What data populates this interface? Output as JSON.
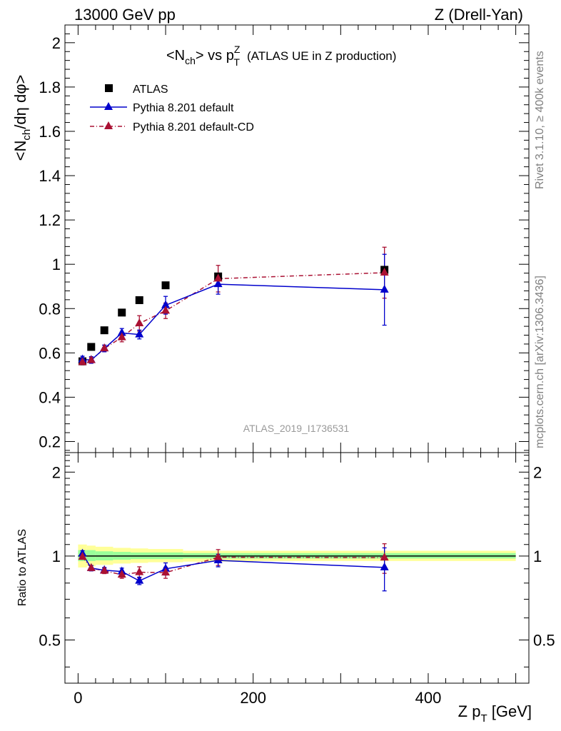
{
  "header": {
    "left": "13000 GeV pp",
    "right": "Z (Drell-Yan)"
  },
  "side_labels": {
    "rivet": "Rivet 3.1.10, ≥ 400k events",
    "mcplots": "mcplots.cern.ch [arXiv:1306.3436]"
  },
  "analysis_label": "ATLAS_2019_I1736531",
  "chart_data": [
    {
      "type": "scatter",
      "title": "<N_ch> vs p_T^Z (ATLAS UE in Z production)",
      "title_parts": {
        "lhs": "<N",
        "lhs_sub": "ch",
        "mid": "> vs p",
        "sup": "Z",
        "sub": "T",
        "rest": "(ATLAS UE in Z production)"
      },
      "ylabel": "<N_ch/dη dφ>",
      "ylabel_parts": {
        "a": "<N",
        "sub": "ch",
        "b": "/dη dφ>"
      },
      "xlim": [
        -15,
        515
      ],
      "ylim": [
        0.15,
        2.08
      ],
      "yticks": [
        0.2,
        0.4,
        0.6,
        0.8,
        1,
        1.2,
        1.4,
        1.6,
        1.8,
        2
      ],
      "ytick_labels": [
        "0.2",
        "0.4",
        "0.6",
        "0.8",
        "1",
        "1.2",
        "1.4",
        "1.6",
        "1.8",
        "2"
      ],
      "legend_position": "top-left",
      "series": [
        {
          "name": "ATLAS",
          "style": "black-square",
          "color": "#000000",
          "x": [
            5,
            15,
            30,
            50,
            70,
            100,
            160,
            350
          ],
          "y": [
            0.562,
            0.627,
            0.702,
            0.782,
            0.838,
            0.905,
            0.945,
            0.975
          ]
        },
        {
          "name": "Pythia 8.201 default",
          "style": "blue-solid-triangle",
          "color": "#0000cc",
          "x": [
            5,
            15,
            30,
            50,
            70,
            100,
            160,
            350
          ],
          "y": [
            0.57,
            0.568,
            0.62,
            0.69,
            0.683,
            0.815,
            0.91,
            0.885
          ],
          "err": [
            0.015,
            0.015,
            0.015,
            0.02,
            0.02,
            0.04,
            0.045,
            0.16
          ]
        },
        {
          "name": "Pythia 8.201 default-CD",
          "style": "red-dashdot-triangle",
          "color": "#aa1133",
          "x": [
            5,
            15,
            30,
            50,
            70,
            100,
            160,
            350
          ],
          "y": [
            0.558,
            0.567,
            0.62,
            0.67,
            0.733,
            0.79,
            0.935,
            0.962
          ],
          "err": [
            0.012,
            0.012,
            0.015,
            0.02,
            0.035,
            0.035,
            0.06,
            0.115
          ]
        }
      ]
    },
    {
      "type": "scatter",
      "title": "",
      "ylabel": "Ratio to ATLAS",
      "xlabel": "Z p_T [GeV]",
      "xlabel_parts": {
        "a": "Z p",
        "sub": "T",
        "b": " [GeV]"
      },
      "xticks": [
        0,
        200,
        400
      ],
      "xtick_labels": [
        "0",
        "200",
        "400"
      ],
      "xlim": [
        -15,
        515
      ],
      "ylim": [
        0.35,
        2.35
      ],
      "yscale": "log",
      "yticks": [
        0.5,
        1,
        2
      ],
      "ytick_labels": [
        "0.5",
        "1",
        "2"
      ],
      "bands": {
        "yellow_color": "#ffff99",
        "green_color": "#99ff99",
        "bins": [
          {
            "x0": 0,
            "x1": 10,
            "yellow": [
              0.91,
              1.1
            ],
            "green": [
              0.96,
              1.05
            ]
          },
          {
            "x0": 10,
            "x1": 20,
            "yellow": [
              0.92,
              1.09
            ],
            "green": [
              0.96,
              1.05
            ]
          },
          {
            "x0": 20,
            "x1": 40,
            "yellow": [
              0.93,
              1.08
            ],
            "green": [
              0.965,
              1.04
            ]
          },
          {
            "x0": 40,
            "x1": 60,
            "yellow": [
              0.94,
              1.07
            ],
            "green": [
              0.97,
              1.035
            ]
          },
          {
            "x0": 60,
            "x1": 80,
            "yellow": [
              0.945,
              1.065
            ],
            "green": [
              0.975,
              1.03
            ]
          },
          {
            "x0": 80,
            "x1": 120,
            "yellow": [
              0.95,
              1.06
            ],
            "green": [
              0.975,
              1.03
            ]
          },
          {
            "x0": 120,
            "x1": 200,
            "yellow": [
              0.955,
              1.045
            ],
            "green": [
              0.98,
              1.025
            ]
          },
          {
            "x0": 200,
            "x1": 500,
            "yellow": [
              0.96,
              1.045
            ],
            "green": [
              0.98,
              1.025
            ]
          }
        ]
      },
      "series": [
        {
          "name": "Pythia 8.201 default",
          "color": "#0000cc",
          "x": [
            5,
            15,
            30,
            50,
            70,
            100,
            160,
            350
          ],
          "y": [
            1.02,
            0.905,
            0.89,
            0.88,
            0.815,
            0.9,
            0.965,
            0.91
          ],
          "err": [
            0.025,
            0.02,
            0.02,
            0.025,
            0.025,
            0.045,
            0.05,
            0.16
          ]
        },
        {
          "name": "Pythia 8.201 default-CD",
          "color": "#aa1133",
          "x": [
            5,
            15,
            30,
            50,
            70,
            100,
            160,
            350
          ],
          "y": [
            0.993,
            0.905,
            0.885,
            0.857,
            0.875,
            0.872,
            0.99,
            0.987
          ],
          "err": [
            0.02,
            0.02,
            0.02,
            0.025,
            0.04,
            0.04,
            0.065,
            0.12
          ]
        }
      ]
    }
  ]
}
